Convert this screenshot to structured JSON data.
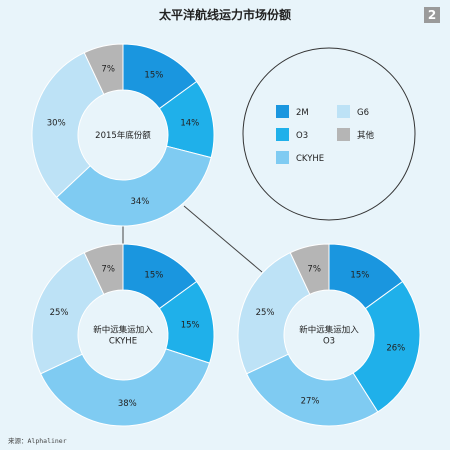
{
  "page": {
    "title": "太平洋航线运力市场份额",
    "page_number": "2",
    "source": "来源：Alphaliner"
  },
  "colors": {
    "background": "#e8f4fa",
    "connector": "#444444"
  },
  "chart_data": [
    {
      "type": "pie",
      "center_label": "2015年底份额",
      "categories": [
        "2M",
        "O3",
        "CKYHE",
        "G6",
        "其他"
      ],
      "values": [
        15,
        14,
        34,
        30,
        7
      ],
      "labels": [
        "15%",
        "14%",
        "34%",
        "30%",
        "7%"
      ],
      "colors": [
        "#1a96df",
        "#1fb0ea",
        "#7fcbf2",
        "#bde2f6",
        "#b5b5b5"
      ]
    },
    {
      "type": "pie",
      "center_label": "新中远集运加入\nCKYHE",
      "categories": [
        "2M",
        "O3",
        "CKYHE",
        "G6",
        "其他"
      ],
      "values": [
        15,
        15,
        38,
        25,
        7
      ],
      "labels": [
        "15%",
        "15%",
        "38%",
        "25%",
        "7%"
      ],
      "colors": [
        "#1a96df",
        "#1fb0ea",
        "#7fcbf2",
        "#bde2f6",
        "#b5b5b5"
      ]
    },
    {
      "type": "pie",
      "center_label": "新中远集运加入\nO3",
      "categories": [
        "2M",
        "O3",
        "CKYHE",
        "G6",
        "其他"
      ],
      "values": [
        15,
        26,
        27,
        25,
        7
      ],
      "labels": [
        "15%",
        "26%",
        "27%",
        "25%",
        "7%"
      ],
      "colors": [
        "#1a96df",
        "#1fb0ea",
        "#7fcbf2",
        "#bde2f6",
        "#b5b5b5"
      ]
    }
  ],
  "legend": [
    {
      "name": "2M",
      "color": "#1a96df"
    },
    {
      "name": "G6",
      "color": "#bde2f6"
    },
    {
      "name": "O3",
      "color": "#1fb0ea"
    },
    {
      "name": "其他",
      "color": "#b5b5b5"
    },
    {
      "name": "CKYHE",
      "color": "#7fcbf2"
    }
  ]
}
